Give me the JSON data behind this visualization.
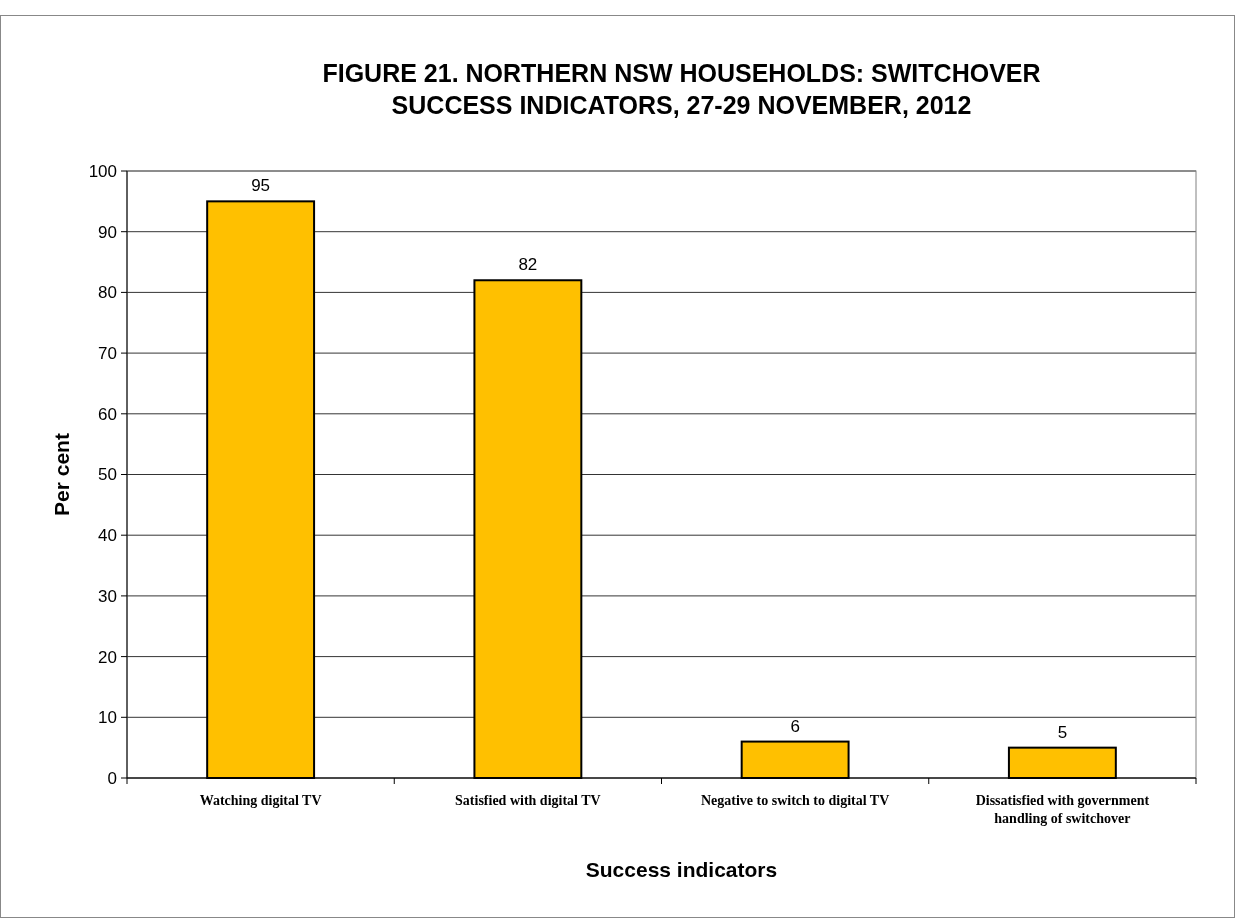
{
  "chart_data": {
    "type": "bar",
    "title": "FIGURE 21. NORTHERN NSW HOUSEHOLDS:  SWITCHOVER SUCCESS INDICATORS, 27-29 NOVEMBER, 2012",
    "xlabel": "Success indicators",
    "ylabel": "Per cent",
    "categories": [
      "Watching digital TV",
      "Satisfied with digital TV",
      "Negative to switch to digital TV",
      "Dissatisfied with government handling of switchover"
    ],
    "values": [
      95,
      82,
      6,
      5
    ],
    "color": "#ffc000",
    "ylim": [
      0,
      100
    ],
    "yticks": [
      0,
      10,
      20,
      30,
      40,
      50,
      60,
      70,
      80,
      90,
      100
    ],
    "grid": "y",
    "data_labels": true
  }
}
